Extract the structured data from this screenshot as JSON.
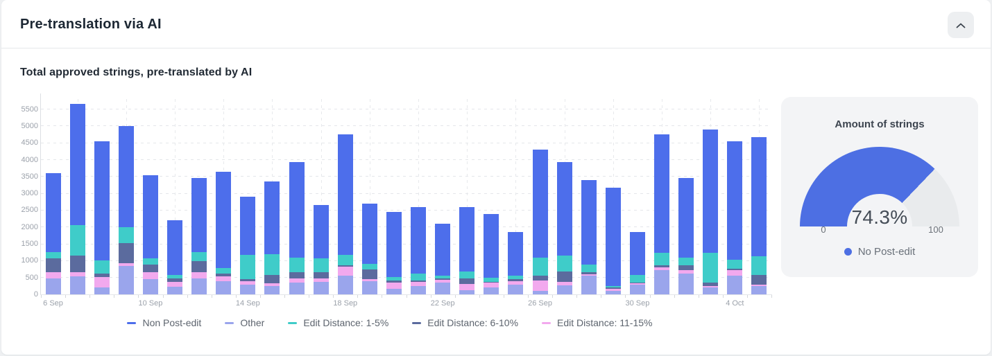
{
  "header": {
    "title": "Pre-translation via AI"
  },
  "chart_section": {
    "subtitle": "Total approved strings, pre-translated by AI"
  },
  "chart_data": {
    "type": "bar",
    "stacked": true,
    "title": "Total approved strings, pre-translated by AI",
    "grid": "dashed",
    "ylim": [
      0,
      5800
    ],
    "y_tick_step": 500,
    "y_tick_labels": [
      "0",
      "500",
      "1000",
      "1500",
      "2000",
      "2500",
      "3000",
      "3500",
      "4000",
      "4500",
      "5000",
      "5500"
    ],
    "categories": [
      "6 Sep",
      "7 Sep",
      "8 Sep",
      "9 Sep",
      "10 Sep",
      "11 Sep",
      "12 Sep",
      "13 Sep",
      "14 Sep",
      "15 Sep",
      "16 Sep",
      "17 Sep",
      "18 Sep",
      "19 Sep",
      "20 Sep",
      "21 Sep",
      "22 Sep",
      "23 Sep",
      "24 Sep",
      "25 Sep",
      "26 Sep",
      "27 Sep",
      "28 Sep",
      "29 Sep",
      "30 Sep",
      "1 Oct",
      "2 Oct",
      "3 Oct",
      "4 Oct",
      "5 Oct"
    ],
    "x_tick_labels": [
      "6 Sep",
      "10 Sep",
      "14 Sep",
      "18 Sep",
      "22 Sep",
      "26 Sep",
      "30 Sep",
      "4 Oct"
    ],
    "x_label_every": 4,
    "series": [
      {
        "name": "Other",
        "color": "#9aa5ec",
        "values": [
          475,
          530,
          210,
          840,
          460,
          230,
          475,
          390,
          290,
          255,
          345,
          380,
          550,
          390,
          170,
          255,
          345,
          115,
          205,
          295,
          105,
          275,
          550,
          105,
          290,
          720,
          620,
          205,
          550,
          255
        ]
      },
      {
        "name": "Edit Distance: 11-15%",
        "color": "#f2a9ee",
        "values": [
          190,
          125,
          295,
          90,
          195,
          150,
          190,
          140,
          100,
          70,
          135,
          100,
          275,
          70,
          175,
          125,
          80,
          195,
          140,
          105,
          305,
          105,
          50,
          55,
          35,
          85,
          100,
          50,
          170,
          40
        ]
      },
      {
        "name": "Edit Distance: 6-10%",
        "color": "#5b6b9e",
        "values": [
          415,
          495,
          115,
          600,
          220,
          100,
          320,
          90,
          55,
          245,
          170,
          170,
          45,
          275,
          65,
          30,
          50,
          170,
          35,
          60,
          140,
          305,
          50,
          45,
          30,
          55,
          150,
          100,
          35,
          275
        ]
      },
      {
        "name": "Edit Distance: 1-5%",
        "color": "#3fccc9",
        "values": [
          180,
          900,
          390,
          470,
          205,
          90,
          270,
          170,
          725,
          620,
          450,
          430,
          300,
          180,
          105,
          210,
          75,
          205,
          120,
          90,
          550,
          460,
          245,
          50,
          230,
          375,
          230,
          880,
          275,
          565
        ]
      },
      {
        "name": "Non Post-edit",
        "color": "#4d6eeb",
        "values": [
          2340,
          3600,
          3540,
          3000,
          2450,
          1630,
          2195,
          2860,
          1730,
          2160,
          2830,
          1570,
          3580,
          1785,
          1935,
          1980,
          1550,
          1915,
          1880,
          1300,
          3200,
          2775,
          2505,
          2915,
          1265,
          3515,
          2350,
          3665,
          3520,
          3535
        ]
      }
    ],
    "legend_order": [
      "Non Post-edit",
      "Other",
      "Edit Distance: 1-5%",
      "Edit Distance: 6-10%",
      "Edit Distance: 11-15%"
    ],
    "legend_position": "bottom"
  },
  "gauge": {
    "title": "Amount of strings",
    "value_percent": 74.3,
    "value_label": "74.3%",
    "min_label": "0",
    "max_label": "100",
    "legend_label": "No Post-edit",
    "fill_color": "#4d6fe3",
    "track_color": "#e9ebed"
  }
}
